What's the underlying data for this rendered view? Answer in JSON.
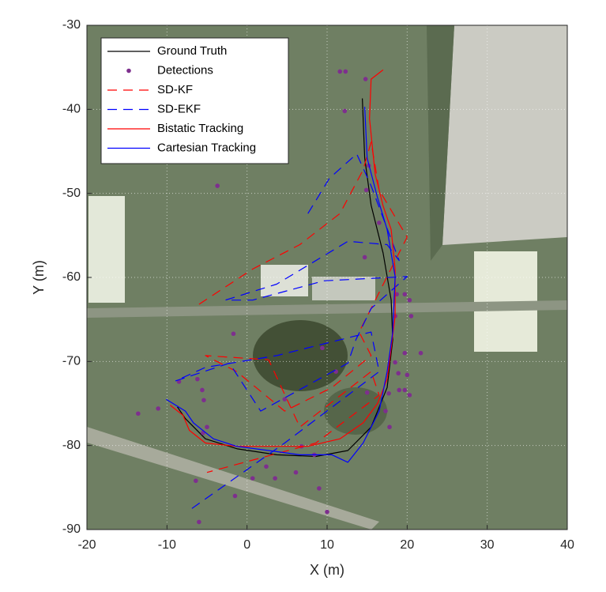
{
  "chart_data": {
    "type": "line",
    "xlabel": "X (m)",
    "ylabel": "Y (m)",
    "xlim": [
      -20,
      40
    ],
    "ylim": [
      -90,
      -30
    ],
    "xticks": [
      -20,
      -10,
      0,
      10,
      20,
      30,
      40
    ],
    "yticks": [
      -90,
      -80,
      -70,
      -60,
      -50,
      -40,
      -30
    ],
    "grid": true,
    "legend": "upper left",
    "series": [
      {
        "name": "Ground Truth",
        "color": "#000000",
        "linestyle": "solid",
        "x": [
          14.4,
          14.7,
          15.5,
          17.0,
          18.0,
          18.2,
          17.5,
          15.5,
          12.6,
          8.6,
          3.7,
          -1.2,
          -5.2,
          -7.7,
          -8.7
        ],
        "values": [
          -38.7,
          -45.8,
          -51.4,
          -57.1,
          -62.7,
          -67.4,
          -73.1,
          -77.8,
          -80.6,
          -81.3,
          -81.1,
          -80.4,
          -79.2,
          -76.8,
          -75.4
        ]
      },
      {
        "name": "Detections",
        "color": "#7e2f8e",
        "linestyle": "none",
        "marker": "dot",
        "x": [
          11.6,
          12.3,
          14.8,
          12.2,
          15.2,
          14.9,
          -3.7,
          16.5,
          14.7,
          -1.7,
          18.7,
          19.7,
          20.3,
          18.5,
          20.5,
          21.7,
          19.7,
          18.5,
          18.9,
          20.0,
          19.0,
          19.7,
          20.3,
          17.7,
          17.3,
          17.8,
          15.0,
          -13.6,
          -11.1,
          -8.5,
          -6.2,
          -5.6,
          -5.4,
          -5.0,
          -5.5,
          -6.4,
          -6.0,
          -1.5,
          0.7,
          3.5,
          6.1,
          9.0,
          10.0,
          6.8,
          8.4,
          2.4,
          4.7,
          9.4,
          11.1
        ],
        "values": [
          -35.5,
          -35.5,
          -36.4,
          -40.2,
          -46.7,
          -49.6,
          -49.1,
          -53.5,
          -57.6,
          -66.7,
          -62.0,
          -62.0,
          -62.7,
          -64.6,
          -64.6,
          -69.0,
          -69.0,
          -70.1,
          -71.4,
          -71.6,
          -73.4,
          -73.4,
          -74.0,
          -73.8,
          -75.9,
          -77.8,
          -73.7,
          -76.2,
          -75.6,
          -72.4,
          -72.1,
          -73.4,
          -74.6,
          -77.8,
          -78.5,
          -84.2,
          -89.1,
          -86.0,
          -83.9,
          -83.9,
          -83.2,
          -85.1,
          -87.9,
          -80.1,
          -81.1,
          -82.5,
          -74.5,
          -68.4,
          -71.2
        ]
      },
      {
        "name": "SD-KF",
        "color": "#ff0000",
        "linestyle": "dashed",
        "x": [
          -6.0,
          0.7,
          6.6,
          11.6,
          14.5,
          15.5,
          16.5,
          20.0,
          18.5,
          15.5,
          14.0,
          15.5,
          10.6,
          4.7,
          -1.3,
          -5.2,
          2.7,
          6.6,
          15.5,
          16.5,
          8.6,
          -5.0
        ],
        "values": [
          -63.2,
          -59.0,
          -56.1,
          -52.4,
          -47.2,
          -43.9,
          -49.6,
          -55.2,
          -58.0,
          -63.7,
          -66.5,
          -69.3,
          -73.1,
          -75.9,
          -71.2,
          -69.3,
          -69.8,
          -77.8,
          -71.2,
          -74.0,
          -79.7,
          -83.2
        ]
      },
      {
        "name": "SD-EKF",
        "color": "#0000ff",
        "linestyle": "dashed",
        "x": [
          7.6,
          10.3,
          13.7,
          15.5,
          19.0,
          17.5,
          12.6,
          3.7,
          -2.7,
          0.7,
          9.6,
          20.0,
          15.5,
          13.6,
          12.6,
          1.7,
          -2.2,
          -8.9,
          -5.2,
          3.7,
          15.5,
          16.5,
          4.7,
          -7.5
        ],
        "values": [
          -52.4,
          -48.2,
          -45.3,
          -49.1,
          -58.0,
          -56.1,
          -55.7,
          -60.8,
          -62.7,
          -62.7,
          -60.4,
          -59.9,
          -63.7,
          -67.4,
          -70.2,
          -75.9,
          -70.2,
          -72.3,
          -70.7,
          -69.3,
          -66.5,
          -71.2,
          -79.7,
          -87.9
        ]
      },
      {
        "name": "Bistatic Tracking",
        "color": "#ff0000",
        "linestyle": "solid",
        "x": [
          17.0,
          15.5,
          15.3,
          16.0,
          17.0,
          18.0,
          18.5,
          18.5,
          18.0,
          17.5,
          16.3,
          14.5,
          11.6,
          7.6,
          3.7,
          -1.3,
          -5.2,
          -7.2,
          -8.0,
          -9.6
        ],
        "values": [
          -35.3,
          -36.4,
          -41.1,
          -47.7,
          -51.5,
          -54.3,
          -59.0,
          -64.6,
          -68.4,
          -72.1,
          -75.0,
          -77.3,
          -79.2,
          -80.1,
          -80.1,
          -80.1,
          -79.7,
          -78.2,
          -76.4,
          -75.2
        ]
      },
      {
        "name": "Cartesian Tracking",
        "color": "#0000ff",
        "linestyle": "solid",
        "x": [
          14.7,
          15.0,
          16.3,
          17.5,
          18.5,
          18.2,
          17.5,
          16.5,
          14.5,
          12.6,
          10.6,
          6.6,
          2.7,
          -1.3,
          -4.2,
          -6.7,
          -7.7,
          -10.1
        ],
        "values": [
          -39.7,
          -45.8,
          -50.5,
          -54.3,
          -59.9,
          -66.5,
          -71.2,
          -75.9,
          -79.7,
          -82.0,
          -81.1,
          -81.1,
          -80.6,
          -80.1,
          -79.2,
          -77.3,
          -75.9,
          -74.5
        ]
      }
    ]
  }
}
